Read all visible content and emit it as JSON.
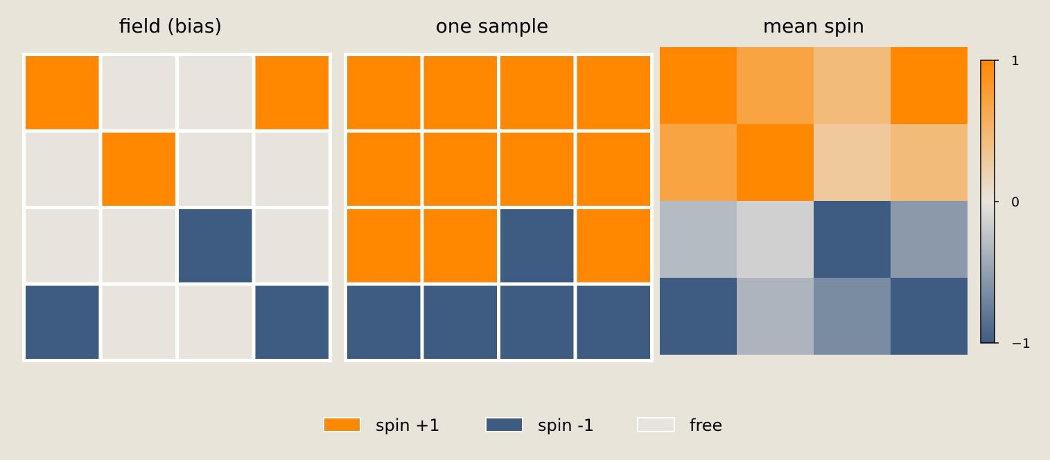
{
  "chart_data": [
    {
      "type": "heatmap",
      "title": "field (bias)",
      "grid": [
        [
          1,
          0,
          0,
          1
        ],
        [
          0,
          1,
          0,
          0
        ],
        [
          0,
          0,
          -1,
          0
        ],
        [
          -1,
          0,
          0,
          -1
        ]
      ]
    },
    {
      "type": "heatmap",
      "title": "one sample",
      "grid": [
        [
          1,
          1,
          1,
          1
        ],
        [
          1,
          1,
          1,
          1
        ],
        [
          1,
          1,
          -1,
          1
        ],
        [
          -1,
          -1,
          -1,
          -1
        ]
      ]
    },
    {
      "type": "heatmap",
      "title": "mean spin",
      "grid": [
        [
          1.0,
          0.7,
          0.45,
          1.0
        ],
        [
          0.7,
          1.0,
          0.3,
          0.45
        ],
        [
          -0.3,
          -0.15,
          -1.0,
          -0.55
        ],
        [
          -1.0,
          -0.35,
          -0.65,
          -1.0
        ]
      ],
      "colorbar": {
        "range": [
          -1,
          1
        ],
        "ticks": [
          1,
          0,
          -1
        ],
        "tick_labels": [
          "1",
          "0",
          "−1"
        ]
      }
    }
  ],
  "colors": {
    "positive": "#ff8800",
    "negative": "#3e5c82",
    "neutral": "#e8e4dd",
    "background": "#e8e4da"
  },
  "legend": {
    "placement": "bottom-center",
    "items": [
      {
        "label": "spin +1",
        "color": "#ff8800"
      },
      {
        "label": "spin -1",
        "color": "#3e5c82"
      },
      {
        "label": "free",
        "color": "#e8e4dd"
      }
    ]
  }
}
